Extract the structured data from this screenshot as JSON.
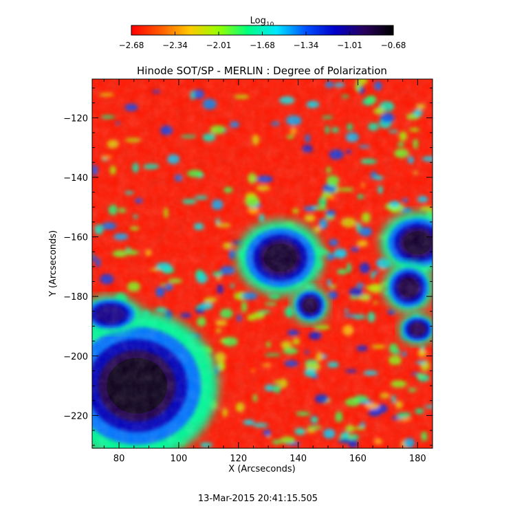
{
  "chart_data": {
    "type": "heatmap",
    "title": "Hinode SOT/SP - MERLIN : Degree of Polarization",
    "xlabel": "X (Arcseconds)",
    "ylabel": "Y (Arcseconds)",
    "timestamp": "13-Mar-2015 20:41:15.505",
    "xlim": [
      71,
      185
    ],
    "ylim": [
      -231,
      -107
    ],
    "xticks": [
      80,
      100,
      120,
      140,
      160,
      180
    ],
    "yticks": [
      -120,
      -140,
      -160,
      -180,
      -200,
      -220
    ],
    "colorbar": {
      "label_base": "Log",
      "label_sub": "10",
      "range": [
        -2.68,
        -0.68
      ],
      "tick_labels": [
        "-2.68",
        "-2.34",
        "-2.01",
        "-1.68",
        "-1.34",
        "-1.01",
        "-0.68"
      ],
      "colormap_stops": [
        "#ff0000",
        "#ff5a00",
        "#ffc800",
        "#96ff00",
        "#00ff80",
        "#00e6ff",
        "#0050ff",
        "#0000c8",
        "#28005a",
        "#000000"
      ]
    },
    "features": [
      {
        "name": "sunspot-umbra",
        "x": 86,
        "y": -210,
        "rx": 13,
        "ry": 12,
        "value": -0.75
      },
      {
        "name": "pore",
        "x": 134,
        "y": -167,
        "rx": 7,
        "ry": 6,
        "value": -0.8
      },
      {
        "name": "pore",
        "x": 144,
        "y": -183,
        "rx": 3,
        "ry": 3,
        "value": -0.85
      },
      {
        "name": "pore",
        "x": 180,
        "y": -162,
        "rx": 6,
        "ry": 5,
        "value": -0.8
      },
      {
        "name": "pore",
        "x": 177,
        "y": -177,
        "rx": 4,
        "ry": 4,
        "value": -0.85
      },
      {
        "name": "pore",
        "x": 180,
        "y": -191,
        "rx": 3,
        "ry": 2.5,
        "value": -0.9
      },
      {
        "name": "pore",
        "x": 77,
        "y": -186,
        "rx": 5,
        "ry": 3,
        "value": -1.0
      }
    ]
  }
}
